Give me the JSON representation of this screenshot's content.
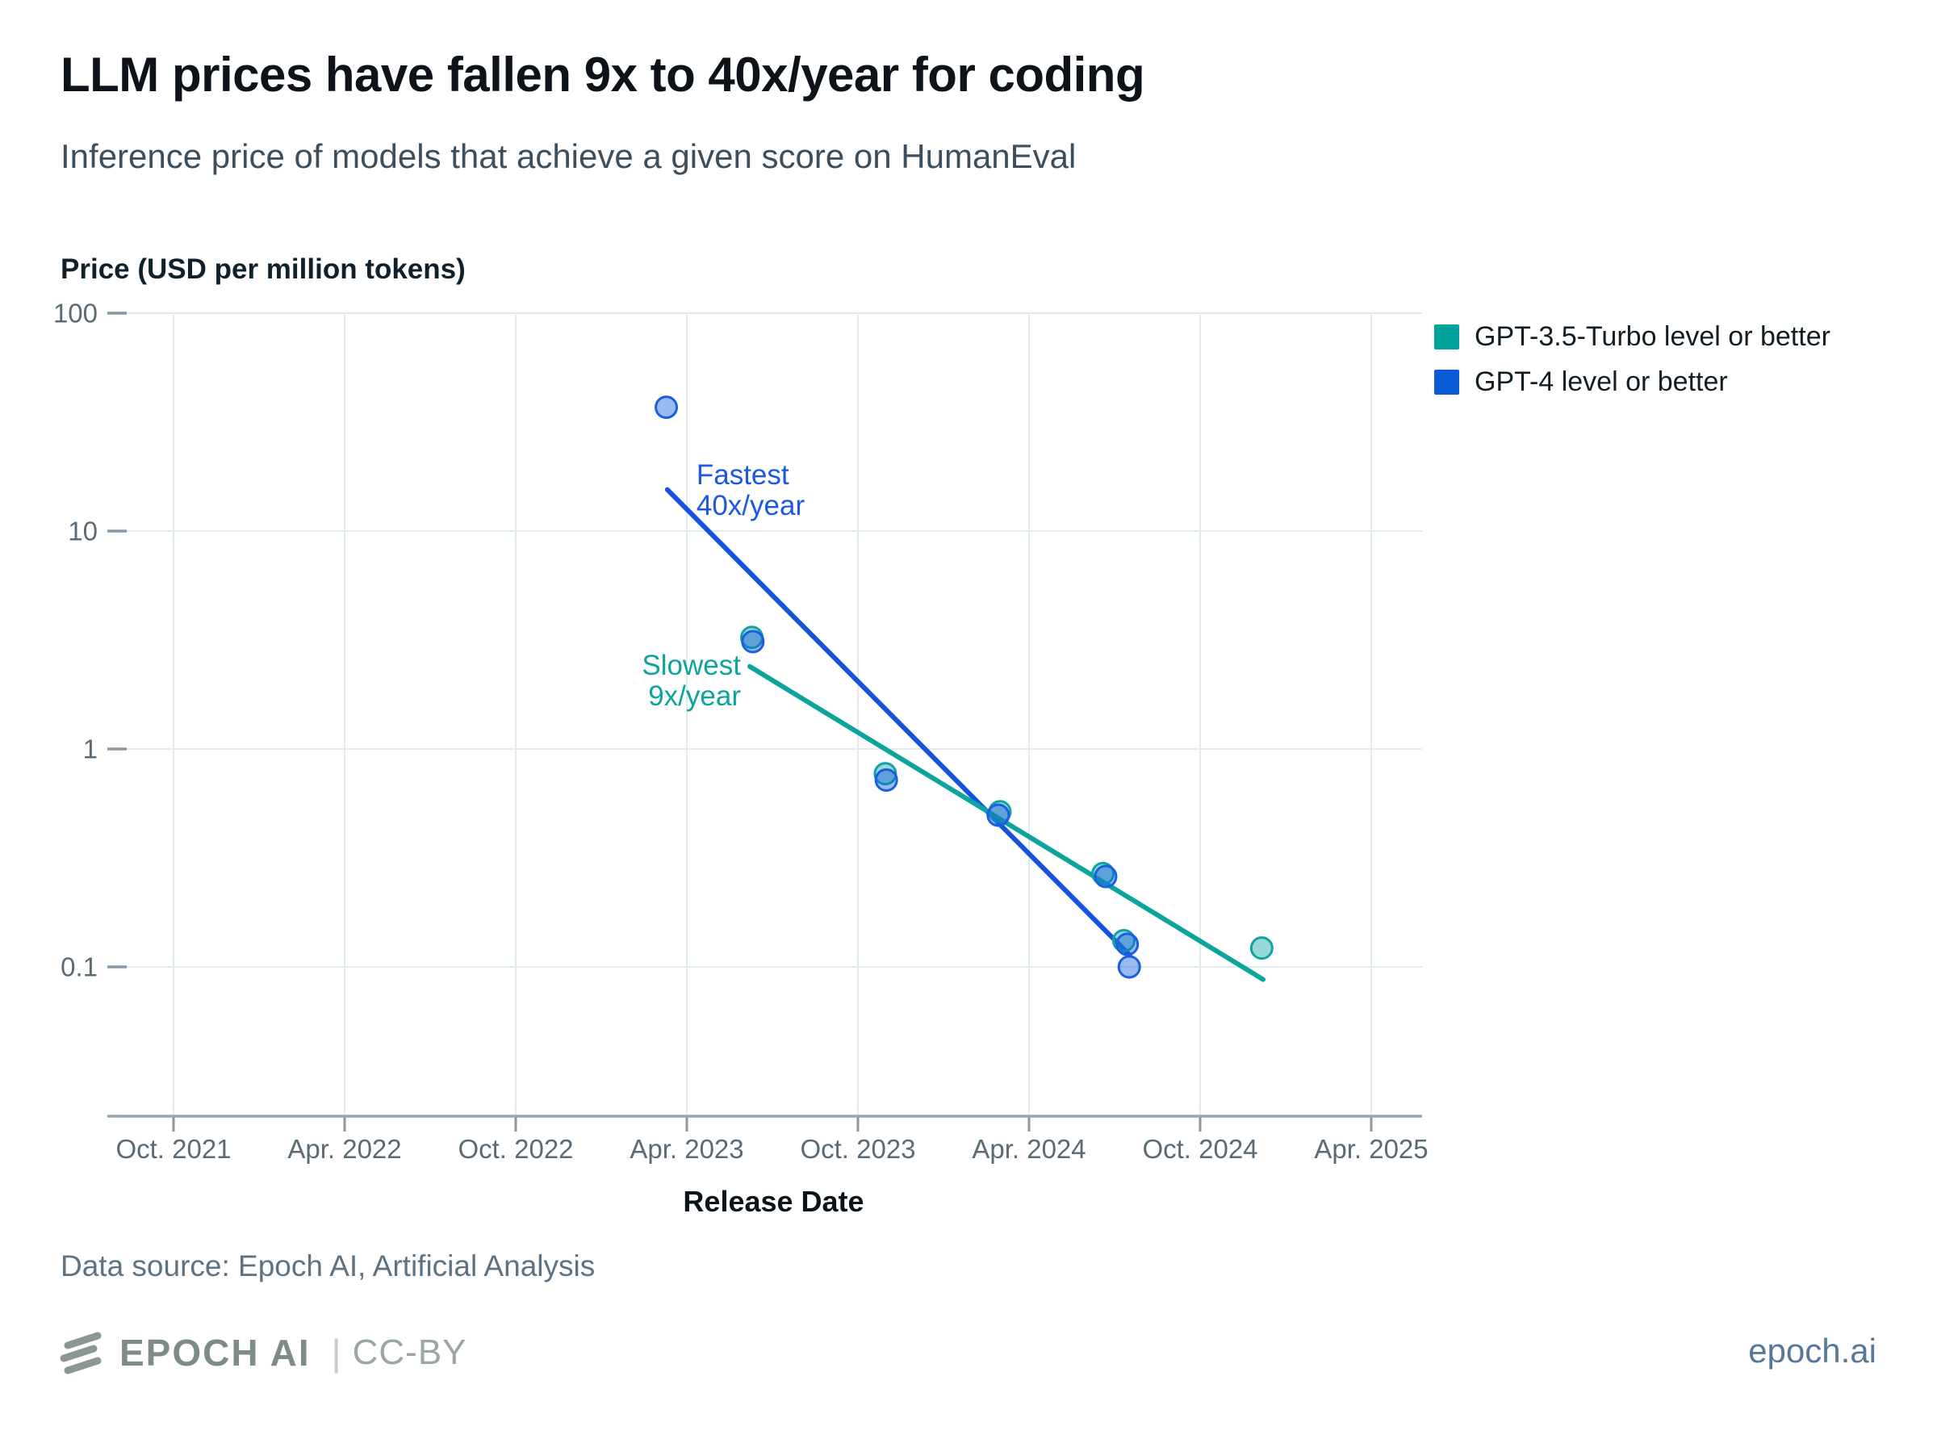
{
  "header": {
    "title": "LLM prices have fallen 9x to 40x/year for coding",
    "subtitle": "Inference price of models that achieve a given score on HumanEval"
  },
  "legend": [
    {
      "label": "GPT-3.5-Turbo level or better",
      "color": "#00A39B"
    },
    {
      "label": "GPT-4 level or better",
      "color": "#0B5AD8"
    }
  ],
  "chart_data": {
    "type": "scatter",
    "title": "LLM prices have fallen 9x to 40x/year for coding",
    "xlabel": "Release Date",
    "ylabel": "Price (USD per million tokens)",
    "x_scale": "time-years",
    "y_scale": "log",
    "xlim": [
      2021.6,
      2025.4
    ],
    "ylim": [
      0.021,
      100
    ],
    "grid": true,
    "legend_position": "top-right",
    "x_ticks": [
      {
        "label": "Oct. 2021",
        "x": 2021.75
      },
      {
        "label": "Apr. 2022",
        "x": 2022.25
      },
      {
        "label": "Oct. 2022",
        "x": 2022.75
      },
      {
        "label": "Apr. 2023",
        "x": 2023.25
      },
      {
        "label": "Oct. 2023",
        "x": 2023.75
      },
      {
        "label": "Apr. 2024",
        "x": 2024.25
      },
      {
        "label": "Oct. 2024",
        "x": 2024.75
      },
      {
        "label": "Apr. 2025",
        "x": 2025.25
      }
    ],
    "y_ticks": [
      {
        "label": "100",
        "y": 100
      },
      {
        "label": "10",
        "y": 10
      },
      {
        "label": "1",
        "y": 1
      },
      {
        "label": "0.1",
        "y": 0.1
      }
    ],
    "series": [
      {
        "name": "GPT-3.5-Turbo level or better",
        "color": "#0FA3A3",
        "points": [
          {
            "x": 2023.44,
            "y": 3.25
          },
          {
            "x": 2023.83,
            "y": 0.77
          },
          {
            "x": 2024.165,
            "y": 0.515
          },
          {
            "x": 2024.466,
            "y": 0.268
          },
          {
            "x": 2024.527,
            "y": 0.132
          },
          {
            "x": 2024.93,
            "y": 0.122
          }
        ]
      },
      {
        "name": "GPT-4 level or better",
        "color": "#1A5FDF",
        "points": [
          {
            "x": 2023.19,
            "y": 37.0
          },
          {
            "x": 2023.443,
            "y": 3.11
          },
          {
            "x": 2023.833,
            "y": 0.72
          },
          {
            "x": 2024.16,
            "y": 0.497
          },
          {
            "x": 2024.474,
            "y": 0.26
          },
          {
            "x": 2024.537,
            "y": 0.127
          },
          {
            "x": 2024.543,
            "y": 0.1
          }
        ]
      }
    ],
    "trend_lines": [
      {
        "name": "Fastest 40x/year",
        "color": "#1553DC",
        "x1": 2023.193,
        "y1": 15.5,
        "x2": 2024.545,
        "y2": 0.113
      },
      {
        "name": "Slowest 9x/year",
        "color": "#0CA49C",
        "x1": 2023.434,
        "y1": 2.39,
        "x2": 2024.934,
        "y2": 0.0876
      }
    ],
    "annotations": [
      {
        "lines": [
          "Fastest",
          "40x/year"
        ],
        "color": "#1B59E0",
        "x": 2023.278,
        "y": 18.2,
        "align": "start"
      },
      {
        "lines": [
          "Slowest",
          "9x/year"
        ],
        "color": "#0DA49E",
        "x": 2023.408,
        "y": 2.43,
        "align": "end"
      }
    ]
  },
  "footer": {
    "data_source": "Data source: Epoch AI, Artificial Analysis",
    "logo_icon": "epoch-three-bars-icon",
    "brand_name": "EPOCH AI",
    "divider": "|",
    "license": "CC-BY",
    "site": "epoch.ai"
  }
}
